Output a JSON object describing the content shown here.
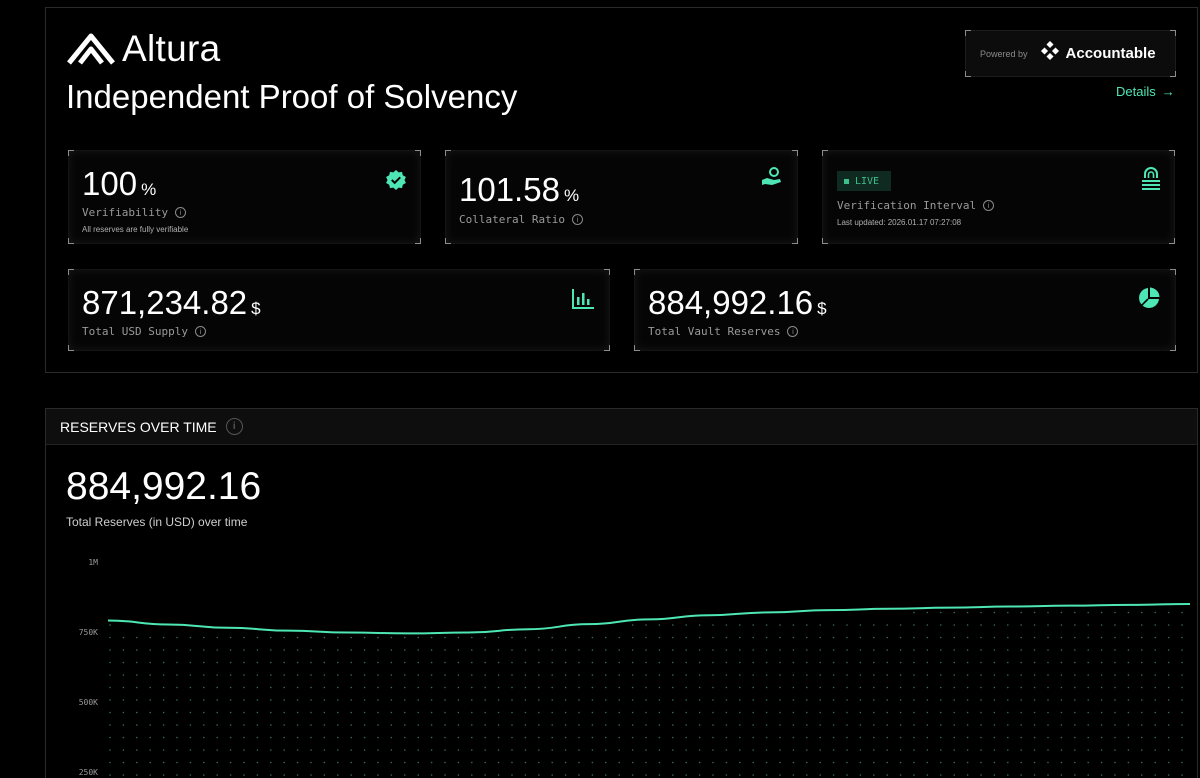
{
  "brand": {
    "name": "Altura",
    "logo_icon": "altura-logo-icon"
  },
  "header": {
    "title": "Independent Proof of Solvency",
    "powered_by_label": "Powered by",
    "powered_by_name": "Accountable",
    "details_label": "Details",
    "details_arrow": "→"
  },
  "cards": {
    "verifiability": {
      "value": "100",
      "unit": "%",
      "label": "Verifiability",
      "sub": "All reserves are fully verifiable",
      "icon": "verified-badge-icon"
    },
    "collateral": {
      "value": "101.58",
      "unit": "%",
      "label": "Collateral Ratio",
      "icon": "hand-coins-icon"
    },
    "interval": {
      "badge": "LIVE",
      "label": "Verification Interval",
      "sub": "Last updated: 2026.01.17 07:27:08",
      "icon": "fingerprint-lock-icon"
    },
    "supply": {
      "value": "871,234.82",
      "unit": "$",
      "label": "Total USD Supply",
      "icon": "bar-chart-icon"
    },
    "reserves": {
      "value": "884,992.16",
      "unit": "$",
      "label": "Total Vault Reserves",
      "icon": "pie-chart-icon"
    }
  },
  "reserves_chart": {
    "header": "RESERVES OVER TIME",
    "total": "884,992.16",
    "subtitle": "Total Reserves (in USD) over time"
  },
  "colors": {
    "accent": "#4ee6b4",
    "background": "#000000"
  },
  "chart_data": {
    "type": "area",
    "title": "",
    "xlabel": "",
    "ylabel": "",
    "y_ticks": [
      {
        "value": 1000000,
        "label": "1M"
      },
      {
        "value": 750000,
        "label": "750K"
      },
      {
        "value": 500000,
        "label": "500K"
      },
      {
        "value": 250000,
        "label": "250K"
      }
    ],
    "ylim": [
      0,
      1000000
    ],
    "series": [
      {
        "values": [
          791000,
          777000,
          765000,
          755000,
          748000,
          745000,
          748000,
          760000,
          778000,
          795000,
          810000,
          820000,
          828000,
          833000,
          837000,
          841000,
          844000,
          847000,
          850000
        ]
      }
    ],
    "grid": "dotted",
    "legend": "none"
  }
}
